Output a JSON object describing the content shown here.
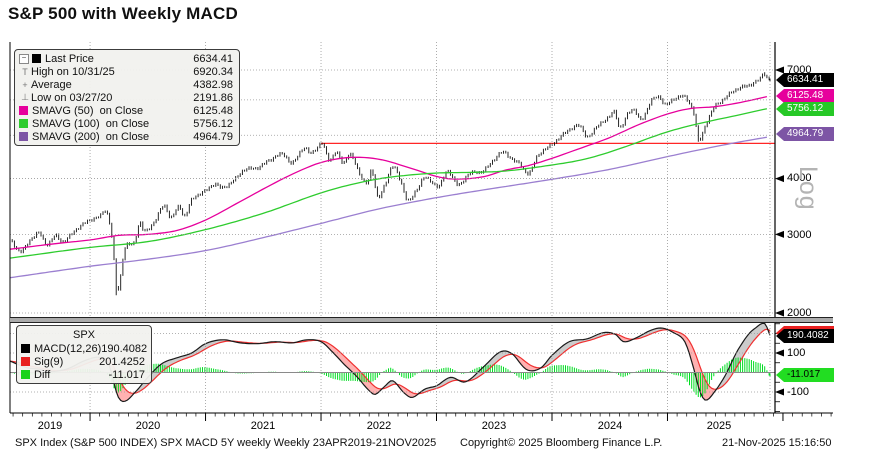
{
  "title": "S&P 500 with Weekly MACD",
  "colors": {
    "price_bars": "#111111",
    "sma50": "#e6009c",
    "sma100": "#2ecc2e",
    "sma200": "#9b7fd0",
    "sma200_badge": "#7d55a5",
    "macd_line": "#1a1a1a",
    "signal_line": "#f03030",
    "diff_histogram": "#00dd22",
    "reference_line": "#ff2626",
    "grid": "#999999"
  },
  "main_legend": {
    "items": [
      {
        "icon": "last-price-swatch",
        "glyph": "",
        "label": "Last Price",
        "value": "6634.41"
      },
      {
        "icon": "high-marker",
        "glyph": "T",
        "label": "High on 10/31/25",
        "value": "6920.34"
      },
      {
        "icon": "average-marker",
        "glyph": "+",
        "label": "Average",
        "value": "4382.98"
      },
      {
        "icon": "low-marker",
        "glyph": "⊥",
        "label": "Low on 03/27/20",
        "value": "2191.86"
      },
      {
        "icon": "sma50-swatch",
        "glyph": "",
        "label": "SMAVG (50)  on Close",
        "value": "6125.48"
      },
      {
        "icon": "sma100-swatch",
        "glyph": "",
        "label": "SMAVG (100)  on Close",
        "value": "5756.12"
      },
      {
        "icon": "sma200-swatch",
        "glyph": "",
        "label": "SMAVG (200)  on Close",
        "value": "4964.79"
      }
    ]
  },
  "macd_legend": {
    "header": "SPX",
    "items": [
      {
        "icon": "macd-swatch",
        "label": "MACD(12,26)",
        "value": "190.4082"
      },
      {
        "icon": "signal-swatch",
        "label": "Sig(9)",
        "value": "201.4252"
      },
      {
        "icon": "diff-swatch",
        "label": "Diff",
        "value": "-11.017"
      }
    ]
  },
  "price_axis": {
    "scale_label": "Log",
    "tick_labels": [
      "7000",
      "4000",
      "3000",
      "2000"
    ],
    "badges": [
      {
        "name": "last-price",
        "value": "6634.41"
      },
      {
        "name": "sma50",
        "value": "6125.48"
      },
      {
        "name": "sma100",
        "value": "5756.12"
      },
      {
        "name": "sma200",
        "value": "4964.79"
      }
    ]
  },
  "macd_axis": {
    "tick_labels": [
      "100",
      "-100"
    ],
    "badges": [
      {
        "name": "macd",
        "value": "190.4082"
      },
      {
        "name": "diff",
        "value": "-11.017"
      }
    ]
  },
  "x_axis": {
    "years": [
      "2019",
      "2020",
      "2021",
      "2022",
      "2023",
      "2024",
      "2025"
    ]
  },
  "footer": {
    "left": "SPX Index (S&P 500 INDEX) SPX MACD 5Y weekly Weekly 23APR2019-21NOV2025",
    "center": "Copyright© 2025 Bloomberg Finance L.P.",
    "right": "21-Nov-2025 15:16:50"
  },
  "chart_data": [
    {
      "panel": "price",
      "type": "line",
      "yscale": "log",
      "x_range": [
        "23APR2019",
        "21NOV2025"
      ],
      "interval": "weekly",
      "stats": {
        "last": 6634.41,
        "high_date": "10/31/25",
        "high": 6920.34,
        "average": 4382.98,
        "low_date": "03/27/20",
        "low": 2191.86
      },
      "gridlines_y": [
        7000,
        6000,
        5000,
        4000,
        3000,
        2000
      ],
      "reference_line": {
        "value": 4796,
        "start_yearfrac": 2022.0
      },
      "price_anchors": [
        [
          2019.31,
          2905
        ],
        [
          2019.4,
          2752
        ],
        [
          2019.5,
          2950
        ],
        [
          2019.56,
          3020
        ],
        [
          2019.62,
          2847
        ],
        [
          2019.7,
          2978
        ],
        [
          2019.76,
          2890
        ],
        [
          2019.9,
          3110
        ],
        [
          2020.0,
          3230
        ],
        [
          2020.09,
          3300
        ],
        [
          2020.14,
          3380
        ],
        [
          2020.19,
          2950
        ],
        [
          2020.235,
          2237
        ],
        [
          2020.3,
          2790
        ],
        [
          2020.38,
          2870
        ],
        [
          2020.43,
          3190
        ],
        [
          2020.47,
          3040
        ],
        [
          2020.56,
          3215
        ],
        [
          2020.64,
          3480
        ],
        [
          2020.7,
          3270
        ],
        [
          2020.77,
          3465
        ],
        [
          2020.82,
          3295
        ],
        [
          2020.88,
          3585
        ],
        [
          2021.0,
          3756
        ],
        [
          2021.08,
          3890
        ],
        [
          2021.14,
          3810
        ],
        [
          2021.25,
          3975
        ],
        [
          2021.33,
          4180
        ],
        [
          2021.45,
          4230
        ],
        [
          2021.56,
          4410
        ],
        [
          2021.67,
          4535
        ],
        [
          2021.75,
          4330
        ],
        [
          2021.85,
          4690
        ],
        [
          2021.91,
          4550
        ],
        [
          2021.97,
          4712
        ],
        [
          2022.01,
          4796
        ],
        [
          2022.07,
          4400
        ],
        [
          2022.13,
          4590
        ],
        [
          2022.19,
          4330
        ],
        [
          2022.25,
          4545
        ],
        [
          2022.33,
          4120
        ],
        [
          2022.4,
          3905
        ],
        [
          2022.44,
          4160
        ],
        [
          2022.49,
          3650
        ],
        [
          2022.56,
          3905
        ],
        [
          2022.62,
          4280
        ],
        [
          2022.69,
          3925
        ],
        [
          2022.75,
          3585
        ],
        [
          2022.83,
          3770
        ],
        [
          2022.89,
          4030
        ],
        [
          2022.95,
          3935
        ],
        [
          2023.02,
          3855
        ],
        [
          2023.1,
          4150
        ],
        [
          2023.19,
          3862
        ],
        [
          2023.28,
          4105
        ],
        [
          2023.38,
          4135
        ],
        [
          2023.47,
          4320
        ],
        [
          2023.56,
          4582
        ],
        [
          2023.64,
          4450
        ],
        [
          2023.71,
          4330
        ],
        [
          2023.8,
          4117
        ],
        [
          2023.88,
          4514
        ],
        [
          2024.0,
          4770
        ],
        [
          2024.1,
          5030
        ],
        [
          2024.23,
          5254
        ],
        [
          2024.31,
          4967
        ],
        [
          2024.41,
          5306
        ],
        [
          2024.49,
          5464
        ],
        [
          2024.54,
          5654
        ],
        [
          2024.59,
          5186
        ],
        [
          2024.66,
          5618
        ],
        [
          2024.71,
          5702
        ],
        [
          2024.77,
          5408
        ],
        [
          2024.86,
          5969
        ],
        [
          2024.93,
          6090
        ],
        [
          2024.98,
          5850
        ],
        [
          2025.06,
          6040
        ],
        [
          2025.13,
          6115
        ],
        [
          2025.18,
          5954
        ],
        [
          2025.23,
          5580
        ],
        [
          2025.27,
          4870
        ],
        [
          2025.33,
          5282
        ],
        [
          2025.41,
          5802
        ],
        [
          2025.48,
          6000
        ],
        [
          2025.56,
          6259
        ],
        [
          2025.63,
          6389
        ],
        [
          2025.7,
          6466
        ],
        [
          2025.77,
          6602
        ],
        [
          2025.81,
          6728
        ],
        [
          2025.833,
          6890
        ],
        [
          2025.861,
          6734
        ],
        [
          2025.888,
          6634.41
        ]
      ],
      "bar_extremes": [
        {
          "t": 2020.235,
          "low": 2191.86
        },
        {
          "t": 2025.27,
          "low": 4835
        },
        {
          "t": 2025.833,
          "high": 6920.34
        }
      ],
      "sma50_last": 6125.48,
      "sma50_anchors": [
        [
          2019.31,
          2780
        ],
        [
          2019.7,
          2860
        ],
        [
          2020.0,
          2915
        ],
        [
          2020.25,
          2985
        ],
        [
          2020.5,
          3000
        ],
        [
          2020.75,
          3060
        ],
        [
          2021.0,
          3230
        ],
        [
          2021.25,
          3495
        ],
        [
          2021.5,
          3790
        ],
        [
          2021.75,
          4090
        ],
        [
          2022.0,
          4345
        ],
        [
          2022.25,
          4460
        ],
        [
          2022.5,
          4420
        ],
        [
          2022.75,
          4240
        ],
        [
          2023.0,
          4045
        ],
        [
          2023.15,
          3990
        ],
        [
          2023.4,
          4035
        ],
        [
          2023.6,
          4180
        ],
        [
          2023.8,
          4280
        ],
        [
          2024.0,
          4440
        ],
        [
          2024.25,
          4680
        ],
        [
          2024.5,
          4940
        ],
        [
          2024.75,
          5280
        ],
        [
          2025.0,
          5580
        ],
        [
          2025.2,
          5740
        ],
        [
          2025.4,
          5790
        ],
        [
          2025.6,
          5900
        ],
        [
          2025.888,
          6125.48
        ]
      ],
      "sma100_last": 5756.12,
      "sma100_anchors": [
        [
          2019.31,
          2655
        ],
        [
          2020.0,
          2805
        ],
        [
          2020.5,
          2890
        ],
        [
          2021.0,
          3075
        ],
        [
          2021.5,
          3345
        ],
        [
          2022.0,
          3715
        ],
        [
          2022.3,
          3900
        ],
        [
          2022.6,
          4030
        ],
        [
          2023.0,
          4115
        ],
        [
          2023.3,
          4130
        ],
        [
          2023.6,
          4160
        ],
        [
          2024.0,
          4290
        ],
        [
          2024.3,
          4430
        ],
        [
          2024.6,
          4680
        ],
        [
          2025.0,
          5090
        ],
        [
          2025.3,
          5330
        ],
        [
          2025.6,
          5540
        ],
        [
          2025.888,
          5756.12
        ]
      ],
      "sma200_last": 4964.79,
      "sma200_anchors": [
        [
          2019.31,
          2400
        ],
        [
          2020.0,
          2545
        ],
        [
          2020.5,
          2640
        ],
        [
          2021.0,
          2760
        ],
        [
          2021.5,
          2950
        ],
        [
          2022.0,
          3175
        ],
        [
          2022.5,
          3420
        ],
        [
          2023.0,
          3625
        ],
        [
          2023.5,
          3805
        ],
        [
          2024.0,
          3985
        ],
        [
          2024.5,
          4195
        ],
        [
          2025.0,
          4480
        ],
        [
          2025.5,
          4765
        ],
        [
          2025.888,
          4964.79
        ]
      ]
    },
    {
      "panel": "macd",
      "type": "macd",
      "gridlines_y": [
        200,
        100,
        0,
        -100
      ],
      "macd_last": 190.4082,
      "sig_last": 201.4252,
      "diff_last": -11.017,
      "sig_rule": "EMA(9) of weekly MACD",
      "diff_rule": "MACD minus Sig",
      "macd_anchors": [
        [
          2019.31,
          58
        ],
        [
          2019.45,
          25
        ],
        [
          2019.55,
          18
        ],
        [
          2019.65,
          5
        ],
        [
          2019.8,
          18
        ],
        [
          2019.95,
          60
        ],
        [
          2020.08,
          78
        ],
        [
          2020.16,
          45
        ],
        [
          2020.24,
          -120
        ],
        [
          2020.3,
          -148
        ],
        [
          2020.4,
          -95
        ],
        [
          2020.5,
          -25
        ],
        [
          2020.62,
          45
        ],
        [
          2020.75,
          75
        ],
        [
          2020.88,
          100
        ],
        [
          2021.0,
          148
        ],
        [
          2021.15,
          168
        ],
        [
          2021.3,
          152
        ],
        [
          2021.45,
          148
        ],
        [
          2021.6,
          158
        ],
        [
          2021.75,
          152
        ],
        [
          2021.88,
          168
        ],
        [
          2022.0,
          158
        ],
        [
          2022.1,
          105
        ],
        [
          2022.2,
          42
        ],
        [
          2022.3,
          -15
        ],
        [
          2022.42,
          -95
        ],
        [
          2022.47,
          -112
        ],
        [
          2022.55,
          -72
        ],
        [
          2022.62,
          -42
        ],
        [
          2022.72,
          -105
        ],
        [
          2022.79,
          -128
        ],
        [
          2022.9,
          -85
        ],
        [
          2023.0,
          -68
        ],
        [
          2023.12,
          -25
        ],
        [
          2023.25,
          -48
        ],
        [
          2023.4,
          25
        ],
        [
          2023.55,
          105
        ],
        [
          2023.65,
          98
        ],
        [
          2023.78,
          15
        ],
        [
          2023.9,
          22
        ],
        [
          2024.0,
          88
        ],
        [
          2024.15,
          158
        ],
        [
          2024.3,
          172
        ],
        [
          2024.45,
          205
        ],
        [
          2024.55,
          195
        ],
        [
          2024.62,
          158
        ],
        [
          2024.72,
          175
        ],
        [
          2024.85,
          215
        ],
        [
          2024.95,
          228
        ],
        [
          2025.05,
          205
        ],
        [
          2025.15,
          158
        ],
        [
          2025.22,
          35
        ],
        [
          2025.28,
          -95
        ],
        [
          2025.33,
          -142
        ],
        [
          2025.4,
          -105
        ],
        [
          2025.5,
          -15
        ],
        [
          2025.6,
          105
        ],
        [
          2025.7,
          195
        ],
        [
          2025.77,
          232
        ],
        [
          2025.82,
          252
        ],
        [
          2025.85,
          246
        ],
        [
          2025.888,
          190.4082
        ]
      ]
    }
  ]
}
